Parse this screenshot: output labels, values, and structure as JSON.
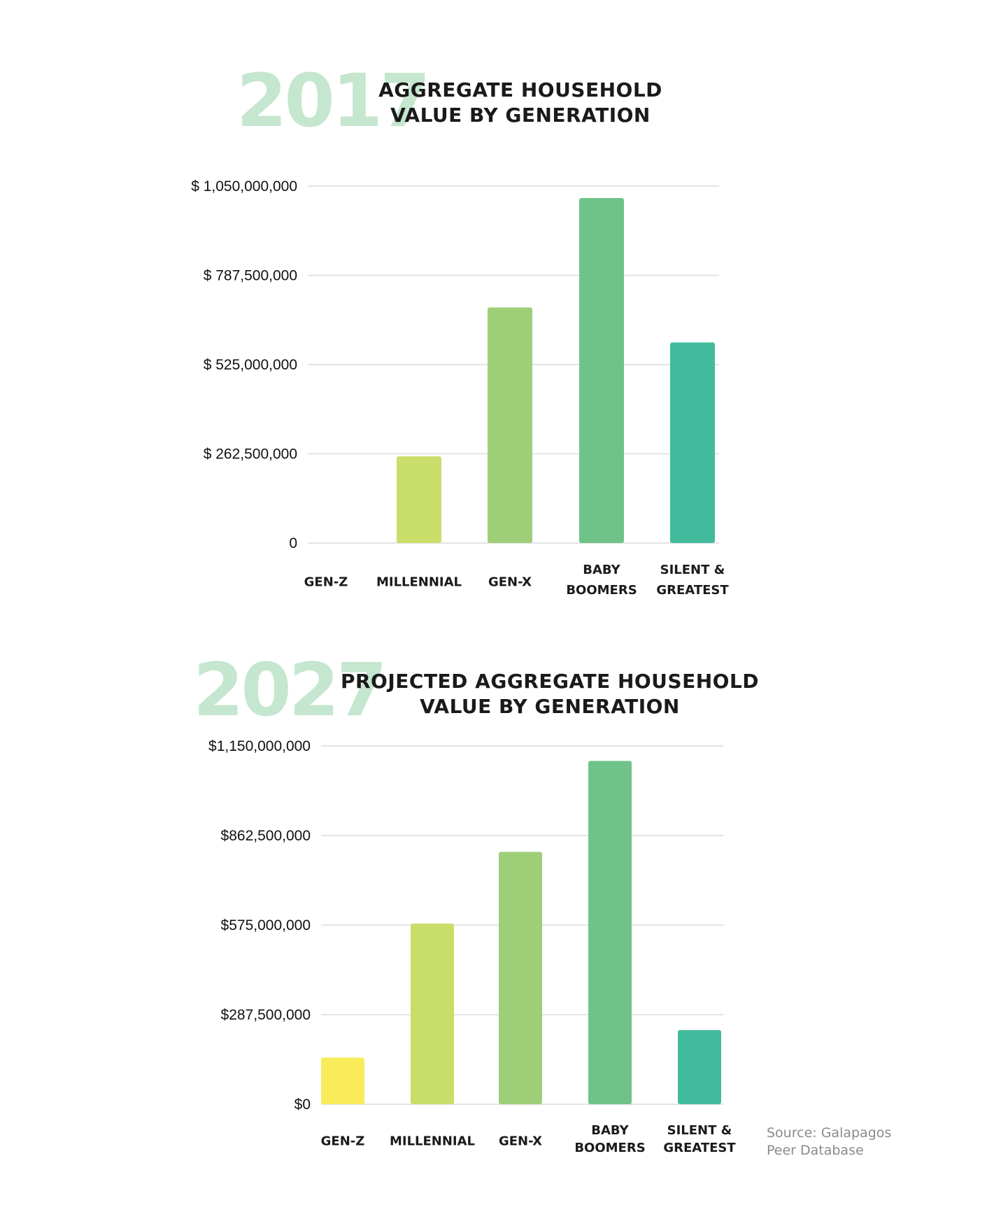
{
  "colors": {
    "year": "#c5e6cf",
    "title": "#1a1a1a",
    "grid": "#dcdcdc",
    "source": "#8a8a8a"
  },
  "chart_data": [
    {
      "type": "bar",
      "year_label": "2017",
      "title_lines": [
        "AGGREGATE HOUSEHOLD",
        "VALUE BY GENERATION"
      ],
      "categories": [
        [
          "GEN-Z"
        ],
        [
          "MILLENNIAL"
        ],
        [
          "GEN-X"
        ],
        [
          "BABY",
          "BOOMERS"
        ],
        [
          "SILENT &",
          "GREATEST"
        ]
      ],
      "values": [
        0,
        255000000,
        693000000,
        1015000000,
        590000000
      ],
      "bar_colors": [
        "#f9ec5b",
        "#c9de68",
        "#9ecf78",
        "#6fc389",
        "#42bb9c"
      ],
      "ylim": [
        0,
        1050000000
      ],
      "yticks": [
        0,
        262500000,
        525000000,
        787500000,
        1050000000
      ],
      "ytick_labels": [
        "0",
        "$ 262,500,000",
        "$ 525,000,000",
        "$ 787,500,000",
        "$ 1,050,000,000"
      ],
      "grid": true,
      "xlabel": "",
      "ylabel": ""
    },
    {
      "type": "bar",
      "year_label": "2027",
      "title_lines": [
        "PROJECTED AGGREGATE HOUSEHOLD",
        "VALUE BY GENERATION"
      ],
      "categories": [
        [
          "GEN-Z"
        ],
        [
          "MILLENNIAL"
        ],
        [
          "GEN-X"
        ],
        [
          "BABY",
          "BOOMERS"
        ],
        [
          "SILENT &",
          "GREATEST"
        ]
      ],
      "values": [
        150000000,
        580000000,
        810000000,
        1102000000,
        238000000
      ],
      "bar_colors": [
        "#f9ec5b",
        "#c9de68",
        "#9ecf78",
        "#6fc389",
        "#42bb9c"
      ],
      "ylim": [
        0,
        1150000000
      ],
      "yticks": [
        0,
        287500000,
        575000000,
        862500000,
        1150000000
      ],
      "ytick_labels": [
        "$0",
        "$287,500,000",
        "$575,000,000",
        "$862,500,000",
        "$1,150,000,000"
      ],
      "grid": true,
      "xlabel": "",
      "ylabel": ""
    }
  ],
  "source_lines": [
    "Source: Galapagos",
    "Peer Database"
  ]
}
